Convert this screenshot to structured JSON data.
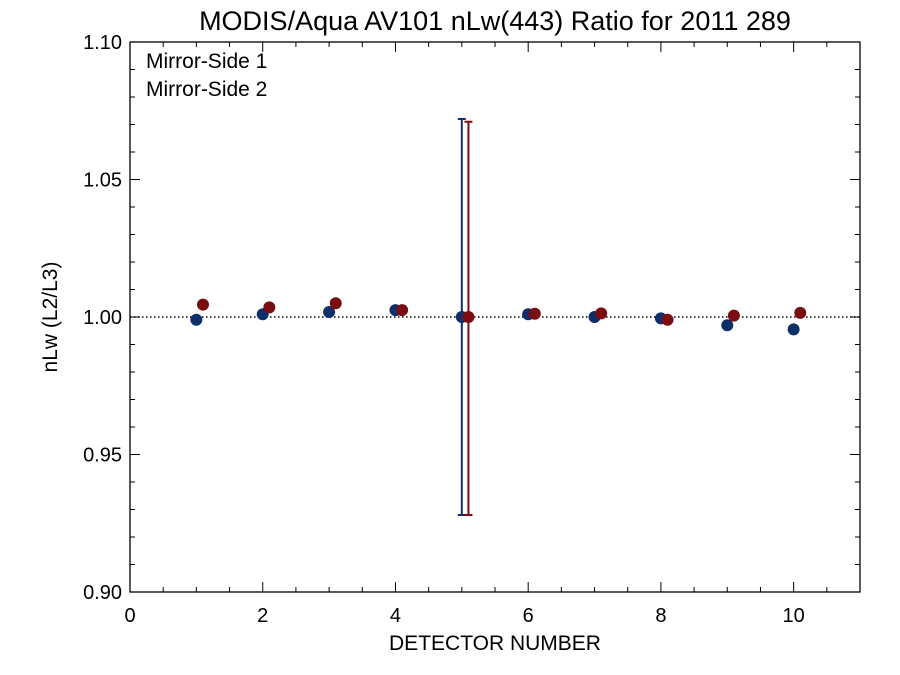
{
  "chart_data": {
    "type": "scatter",
    "title": "MODIS/Aqua AV101 nLw(443) Ratio for 2011 289",
    "xlabel": "DETECTOR NUMBER",
    "ylabel": "nLw (L2/L3)",
    "xlim": [
      0,
      11
    ],
    "ylim": [
      0.9,
      1.1
    ],
    "x_ticks": [
      0,
      2,
      4,
      6,
      8,
      10
    ],
    "x_tick_labels": [
      "0",
      "2",
      "4",
      "6",
      "8",
      "10"
    ],
    "y_ticks": [
      0.9,
      0.95,
      1.0,
      1.05,
      1.1
    ],
    "y_tick_labels": [
      "0.90",
      "0.95",
      "1.00",
      "1.05",
      "1.10"
    ],
    "reference_line": {
      "y": 1.0,
      "style": "dotted"
    },
    "grid": false,
    "legend_position": "top-left",
    "series": [
      {
        "name": "Mirror-Side 1",
        "color": "#0f2f6b",
        "x": [
          1,
          2,
          3,
          4,
          5,
          6,
          7,
          8,
          9,
          10
        ],
        "y": [
          0.999,
          1.001,
          1.0018,
          1.0025,
          1.0,
          1.001,
          1.0,
          0.9995,
          0.997,
          0.9955
        ],
        "error_bars": [
          {
            "x": 5,
            "low": 0.928,
            "high": 1.072
          }
        ]
      },
      {
        "name": "Mirror-Side 2",
        "color": "#7a0d12",
        "x": [
          1.1,
          2.1,
          3.1,
          4.1,
          5.1,
          6.1,
          7.1,
          8.1,
          9.1,
          10.1
        ],
        "y": [
          1.0045,
          1.0035,
          1.005,
          1.0025,
          1.0,
          1.0012,
          1.0013,
          0.999,
          1.0005,
          1.0015
        ],
        "error_bars": [
          {
            "x": 5.1,
            "low": 0.928,
            "high": 1.071
          }
        ]
      }
    ]
  }
}
